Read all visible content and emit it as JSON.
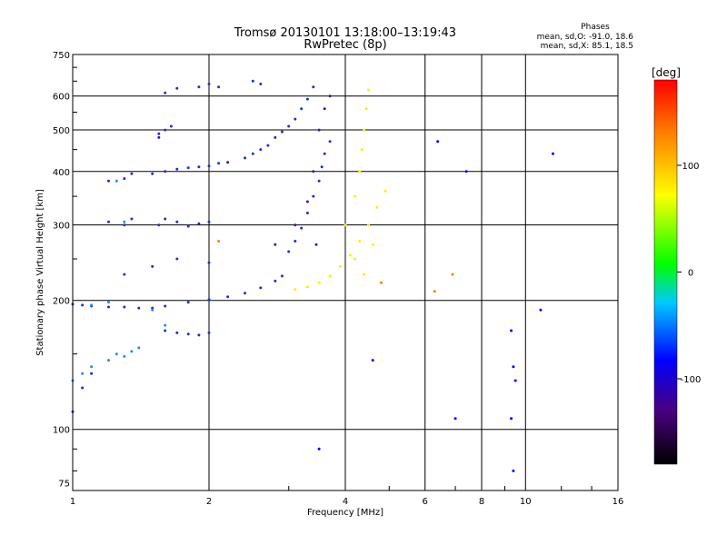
{
  "chart_data": {
    "type": "scatter",
    "title": "Tromsø 20130101 13:18:00–13:19:43",
    "subtitle": "RwPretec (8p)",
    "xlabel": "Frequency [MHz]",
    "ylabel": "Stationary phase Virtual Height [km]",
    "x_scale": "log",
    "y_scale": "log",
    "xlim": [
      1,
      16
    ],
    "ylim": [
      72,
      750
    ],
    "x_ticks": [
      1,
      2,
      4,
      6,
      8,
      10,
      16
    ],
    "y_ticks": [
      75,
      100,
      200,
      300,
      400,
      500,
      600,
      750
    ],
    "grid": true,
    "phase_header": "Phases",
    "phase_stats": [
      "mean, sd,O: -91.0, 18.6",
      "mean, sd,X:  85.1, 18.5"
    ],
    "colorbar": {
      "label": "[deg]",
      "min": -180,
      "max": 180,
      "ticks": [
        -100,
        0,
        100
      ],
      "colors": [
        "#000000",
        "#4a0080",
        "#0000ff",
        "#00c8ff",
        "#00ff00",
        "#ffff00",
        "#ff8000",
        "#ff0000"
      ]
    },
    "series": [
      {
        "color": "#2030d0",
        "points": [
          [
            1.0,
            196
          ],
          [
            1.05,
            195
          ],
          [
            1.1,
            194
          ],
          [
            1.2,
            193
          ],
          [
            1.3,
            193
          ],
          [
            1.4,
            192
          ],
          [
            1.5,
            192
          ],
          [
            1.6,
            194
          ],
          [
            1.8,
            198
          ],
          [
            2.0,
            201
          ],
          [
            2.2,
            204
          ],
          [
            2.4,
            208
          ],
          [
            2.6,
            214
          ],
          [
            2.8,
            222
          ],
          [
            2.9,
            228
          ],
          [
            1.2,
            305
          ],
          [
            1.3,
            300
          ],
          [
            1.35,
            310
          ],
          [
            1.2,
            380
          ],
          [
            1.3,
            385
          ],
          [
            1.35,
            395
          ],
          [
            1.5,
            395
          ],
          [
            1.6,
            400
          ],
          [
            1.7,
            405
          ],
          [
            1.8,
            408
          ],
          [
            1.9,
            410
          ],
          [
            2.0,
            412
          ],
          [
            2.1,
            418
          ],
          [
            1.55,
            300
          ],
          [
            1.6,
            310
          ],
          [
            1.7,
            305
          ],
          [
            1.8,
            298
          ],
          [
            1.9,
            302
          ],
          [
            2.0,
            305
          ],
          [
            1.55,
            490
          ],
          [
            1.6,
            500
          ],
          [
            1.65,
            510
          ],
          [
            1.6,
            610
          ],
          [
            1.7,
            625
          ],
          [
            1.9,
            630
          ],
          [
            2.0,
            640
          ],
          [
            2.1,
            630
          ],
          [
            2.4,
            430
          ],
          [
            2.5,
            440
          ],
          [
            2.6,
            450
          ],
          [
            2.7,
            460
          ],
          [
            2.8,
            480
          ],
          [
            2.9,
            495
          ],
          [
            3.0,
            510
          ],
          [
            3.1,
            530
          ],
          [
            3.2,
            560
          ],
          [
            3.3,
            590
          ],
          [
            3.4,
            630
          ],
          [
            2.5,
            650
          ],
          [
            2.6,
            640
          ],
          [
            3.0,
            260
          ],
          [
            3.1,
            275
          ],
          [
            3.2,
            295
          ],
          [
            3.3,
            320
          ],
          [
            3.4,
            350
          ],
          [
            3.5,
            380
          ],
          [
            3.55,
            410
          ],
          [
            3.6,
            440
          ],
          [
            3.7,
            470
          ],
          [
            1.6,
            170
          ],
          [
            1.7,
            168
          ],
          [
            1.8,
            167
          ],
          [
            1.9,
            166
          ],
          [
            2.0,
            168
          ],
          [
            1.0,
            110
          ],
          [
            1.05,
            125
          ],
          [
            1.1,
            135
          ],
          [
            1.3,
            230
          ],
          [
            1.5,
            240
          ],
          [
            1.7,
            250
          ],
          [
            2.0,
            245
          ]
        ]
      },
      {
        "color": "#1f8fe8",
        "points": [
          [
            1.0,
            130
          ],
          [
            1.05,
            135
          ],
          [
            1.1,
            140
          ],
          [
            1.2,
            145
          ],
          [
            1.25,
            150
          ],
          [
            1.3,
            148
          ],
          [
            1.35,
            152
          ],
          [
            1.4,
            155
          ],
          [
            1.1,
            195
          ],
          [
            1.2,
            198
          ],
          [
            1.3,
            305
          ],
          [
            1.25,
            380
          ],
          [
            1.5,
            190
          ],
          [
            1.6,
            175
          ]
        ]
      },
      {
        "color": "#4a10a0",
        "points": [
          [
            1.55,
            480
          ],
          [
            2.2,
            420
          ],
          [
            2.8,
            270
          ],
          [
            3.1,
            300
          ],
          [
            3.3,
            340
          ],
          [
            3.4,
            400
          ],
          [
            3.45,
            270
          ],
          [
            3.5,
            500
          ],
          [
            3.6,
            560
          ],
          [
            3.7,
            600
          ]
        ]
      },
      {
        "color": "#ffee00",
        "points": [
          [
            3.1,
            212
          ],
          [
            3.3,
            215
          ],
          [
            3.5,
            220
          ],
          [
            3.7,
            228
          ],
          [
            3.9,
            240
          ],
          [
            4.1,
            255
          ],
          [
            4.3,
            275
          ],
          [
            4.5,
            300
          ],
          [
            4.7,
            330
          ],
          [
            4.9,
            360
          ],
          [
            4.0,
            300
          ],
          [
            4.2,
            350
          ],
          [
            4.3,
            400
          ],
          [
            4.35,
            450
          ],
          [
            4.4,
            500
          ],
          [
            4.45,
            560
          ],
          [
            4.5,
            620
          ],
          [
            4.2,
            250
          ],
          [
            4.4,
            230
          ],
          [
            4.6,
            270
          ]
        ]
      },
      {
        "color": "#ff8000",
        "points": [
          [
            6.3,
            210
          ],
          [
            6.9,
            230
          ],
          [
            2.1,
            275
          ],
          [
            4.8,
            220
          ]
        ]
      },
      {
        "color": "#0000ff",
        "points": [
          [
            9.3,
            170
          ],
          [
            9.4,
            140
          ],
          [
            9.5,
            130
          ],
          [
            7.0,
            106
          ],
          [
            9.3,
            106
          ],
          [
            9.4,
            80
          ],
          [
            10.8,
            190
          ],
          [
            6.4,
            470
          ],
          [
            7.4,
            400
          ],
          [
            11.5,
            440
          ],
          [
            3.5,
            90
          ],
          [
            4.6,
            145
          ]
        ]
      }
    ]
  }
}
